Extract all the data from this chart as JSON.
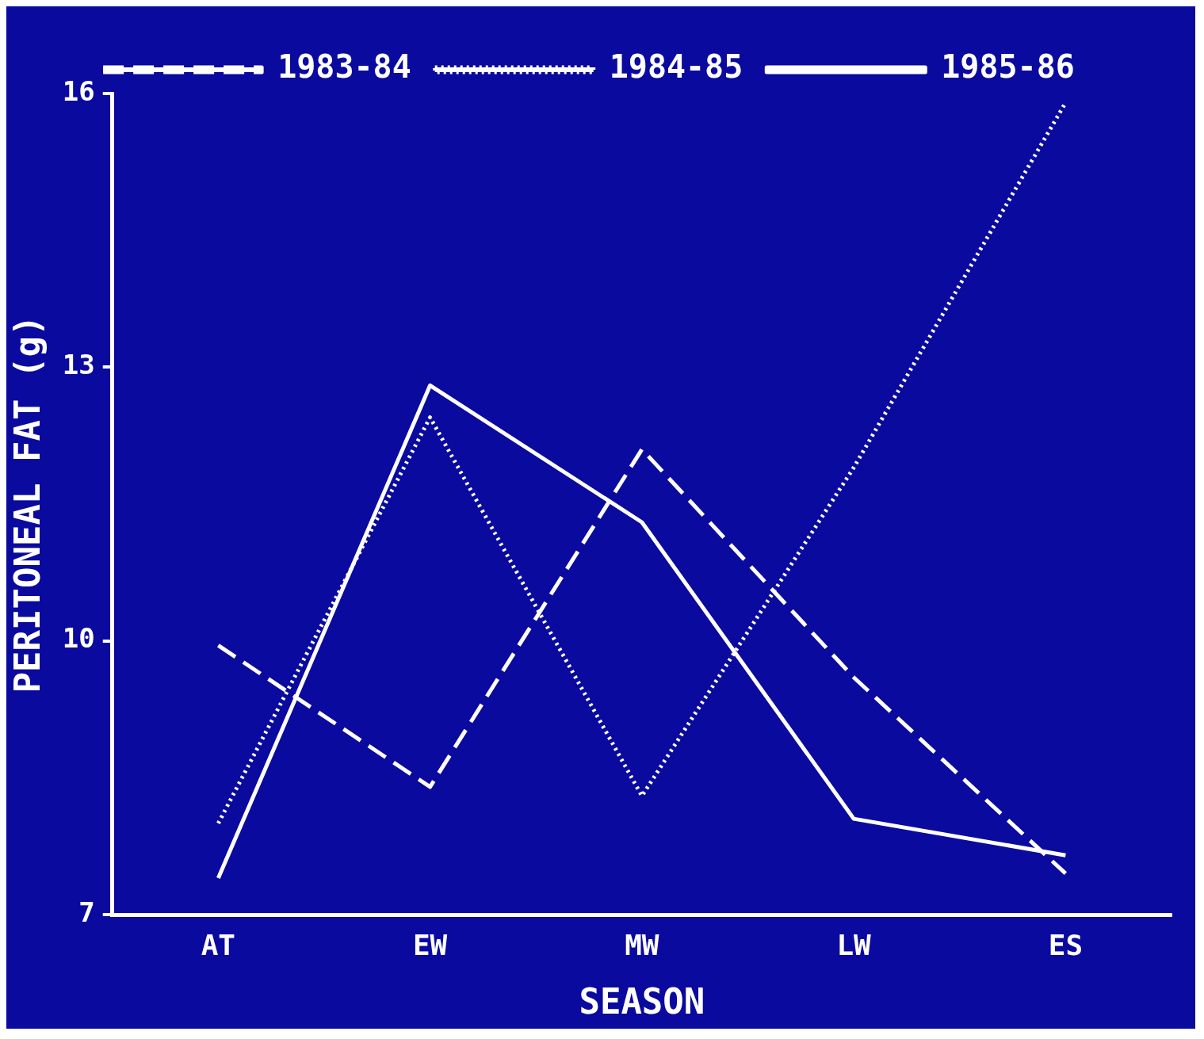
{
  "chart_data": {
    "type": "line",
    "xlabel": "SEASON",
    "ylabel": "PERITONEAL FAT (g)",
    "categories": [
      "AT",
      "EW",
      "MW",
      "LW",
      "ES"
    ],
    "ylim": [
      7,
      16
    ],
    "yticks": [
      7,
      10,
      13,
      16
    ],
    "grid": false,
    "legend": "top",
    "marker": "none",
    "series": [
      {
        "name": "1983-84",
        "color": "#ffffff",
        "line_style": "dashed",
        "values": [
          9.95,
          8.4,
          12.1,
          9.6,
          7.45
        ]
      },
      {
        "name": "1984-85",
        "color": "#ffffff",
        "line_style": "dotted",
        "values": [
          8.0,
          12.45,
          8.3,
          11.9,
          15.9
        ]
      },
      {
        "name": "1985-86",
        "color": "#ffffff",
        "line_style": "solid",
        "values": [
          7.4,
          12.8,
          11.3,
          8.05,
          7.65
        ]
      }
    ]
  }
}
